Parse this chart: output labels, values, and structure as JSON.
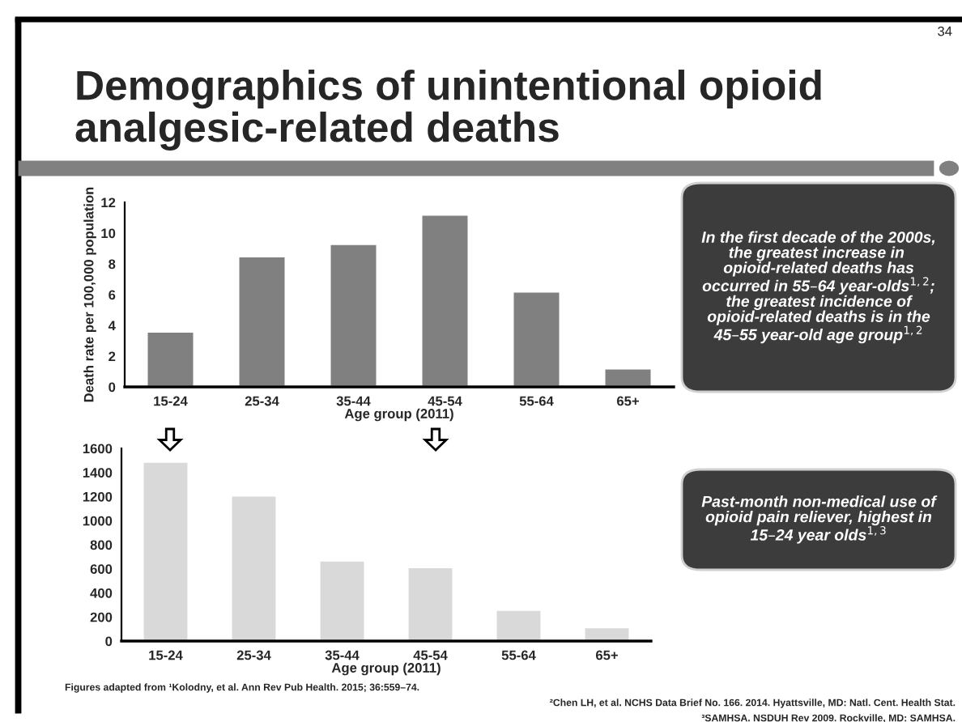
{
  "chart_data": [
    {
      "type": "bar",
      "title": "Demographics of unintentional opioid analgesic-related deaths",
      "categories": [
        "15-24",
        "25-34",
        "35-44",
        "45-54",
        "55-64",
        "65+"
      ],
      "values": [
        3.6,
        8.5,
        9.3,
        11.2,
        6.2,
        1.2
      ],
      "color": "#808080",
      "xlabel": "Age group (2011)",
      "ylabel": "Death rate per 100,000 population",
      "ylim": [
        0,
        12
      ],
      "yticks": [
        0,
        2,
        4,
        6,
        8,
        10,
        12
      ],
      "grid": false,
      "legend": false,
      "annotations": [
        "34",
        "In the first decade of the 2000s, the greatest increase in  opioid-related deaths has occurred in 55–64 year-olds$^{1,2}$; the greatest incidence of opioid-related deaths is in the 45–55 year-old age group$^{1,2}$"
      ]
    },
    {
      "type": "bar",
      "categories": [
        "15-24",
        "25-34",
        "35-44",
        "45-54",
        "55-64",
        "65+"
      ],
      "values": [
        1490,
        1210,
        670,
        615,
        260,
        115
      ],
      "color": "#d9d9d9",
      "xlabel": "Age group (2011)",
      "ylim": [
        0,
        1600
      ],
      "yticks": [
        0,
        200,
        400,
        600,
        800,
        1000,
        1200,
        1400,
        1600
      ],
      "grid": false,
      "legend": false,
      "annotations": [
        "Past-month non-medical use of opioid pain reliever, highest in 15–24 year olds$^{1,3}$",
        "Figures adapted from ¹Kolodny, et al. Ann Rev Pub Health. 2015; 36:559–74.",
        "²Chen LH, et al. NCHS Data Brief No. 166. 2014. Hyattsville, MD: Natl. Cent. Health Stat.",
        "³SAMHSA. NSDUH Rev 2009. Rockville, MD: SAMHSA."
      ]
    }
  ]
}
